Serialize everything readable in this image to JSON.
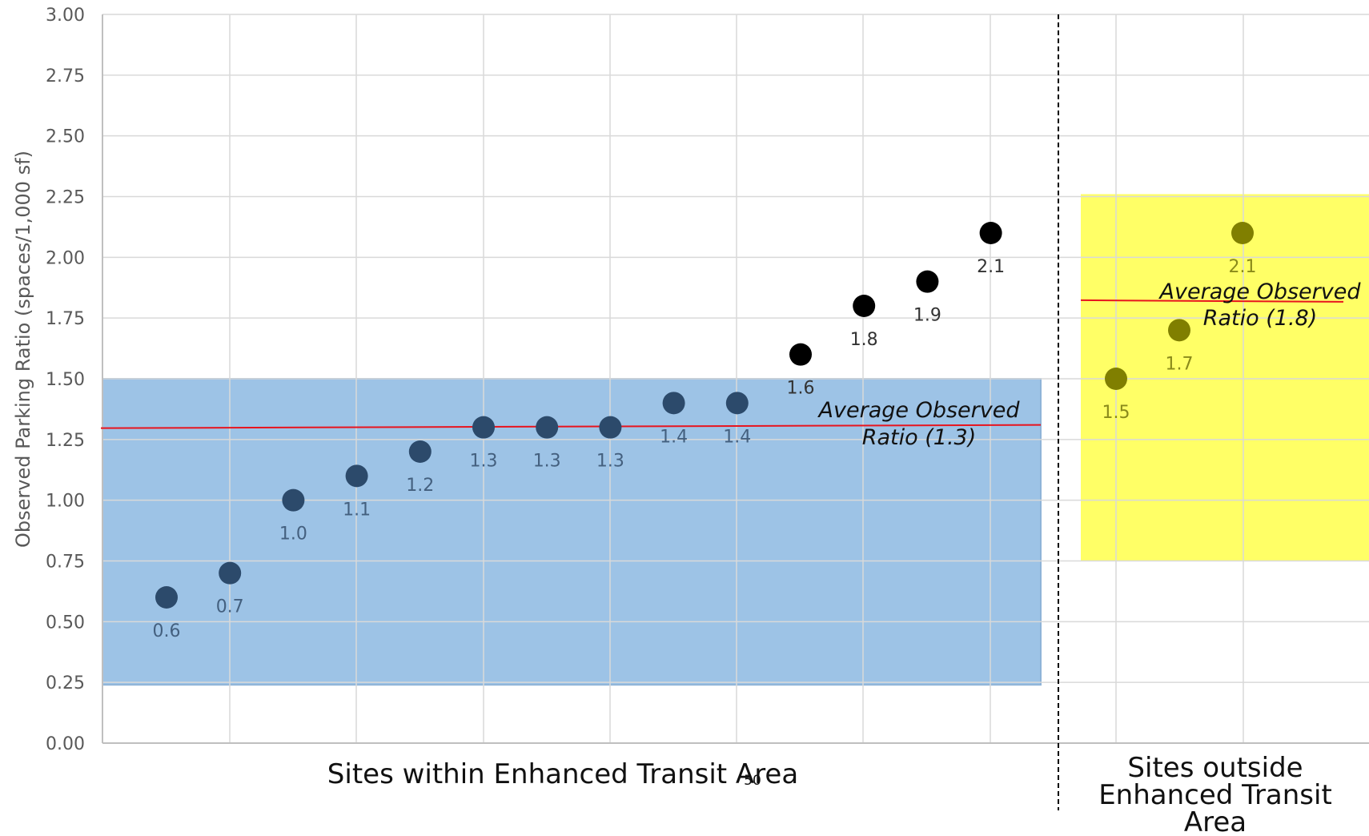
{
  "chart_data": {
    "type": "scatter",
    "ylabel": "Observed Parking Ratio (spaces/1,000 sf)",
    "ylim": [
      0,
      3
    ],
    "yticks": [
      "0.00",
      "0.25",
      "0.50",
      "0.75",
      "1.00",
      "1.25",
      "1.50",
      "1.75",
      "2.00",
      "2.25",
      "2.50",
      "2.75",
      "3.00"
    ],
    "grid": true,
    "groups": [
      {
        "label": "Sites within Enhanced Transit Area",
        "band": {
          "from": 0.24,
          "to": 1.5,
          "color": "#9dc3e6"
        },
        "average": {
          "value": 1.3,
          "label_line1": "Average Observed",
          "label_line2": "Ratio (1.3)"
        },
        "points": [
          {
            "value": 0.6,
            "label": "0.6",
            "color": "#2c4a6b"
          },
          {
            "value": 0.7,
            "label": "0.7",
            "color": "#2c4a6b"
          },
          {
            "value": 1.0,
            "label": "1.0",
            "color": "#2c4a6b"
          },
          {
            "value": 1.1,
            "label": "1.1",
            "color": "#2c4a6b"
          },
          {
            "value": 1.2,
            "label": "1.2",
            "color": "#2c4a6b"
          },
          {
            "value": 1.3,
            "label": "1.3",
            "color": "#2c4a6b"
          },
          {
            "value": 1.3,
            "label": "1.3",
            "color": "#2c4a6b"
          },
          {
            "value": 1.3,
            "label": "1.3",
            "color": "#2c4a6b"
          },
          {
            "value": 1.4,
            "label": "1.4",
            "color": "#2c4a6b"
          },
          {
            "value": 1.4,
            "label": "1.4",
            "color": "#2c4a6b"
          },
          {
            "value": 1.6,
            "label": "1.6",
            "color": "#000000"
          },
          {
            "value": 1.8,
            "label": "1.8",
            "color": "#000000"
          },
          {
            "value": 1.9,
            "label": "1.9",
            "color": "#000000"
          },
          {
            "value": 2.1,
            "label": "2.1",
            "color": "#000000"
          }
        ]
      },
      {
        "label_lines": [
          "Sites outside",
          "Enhanced Transit",
          "Area"
        ],
        "band": {
          "from": 0.75,
          "to": 2.26,
          "color": "#ffff66"
        },
        "average": {
          "value": 1.82,
          "label_line1": "Average Observed",
          "label_line2": "Ratio (1.8)"
        },
        "points": [
          {
            "value": 1.5,
            "label": "1.5",
            "color": "#807f00"
          },
          {
            "value": 1.7,
            "label": "1.7",
            "color": "#807f00"
          },
          {
            "value": 2.1,
            "label": "2.1",
            "color": "#807f00"
          }
        ]
      }
    ],
    "page_number": "50",
    "colors": {
      "average_line": "#e8141e",
      "grid": "#d9d9d9",
      "divider": "#000000",
      "label_in_band": "#44607f",
      "label_outside": "#333333",
      "label_yellow": "#8a8a1a"
    }
  }
}
